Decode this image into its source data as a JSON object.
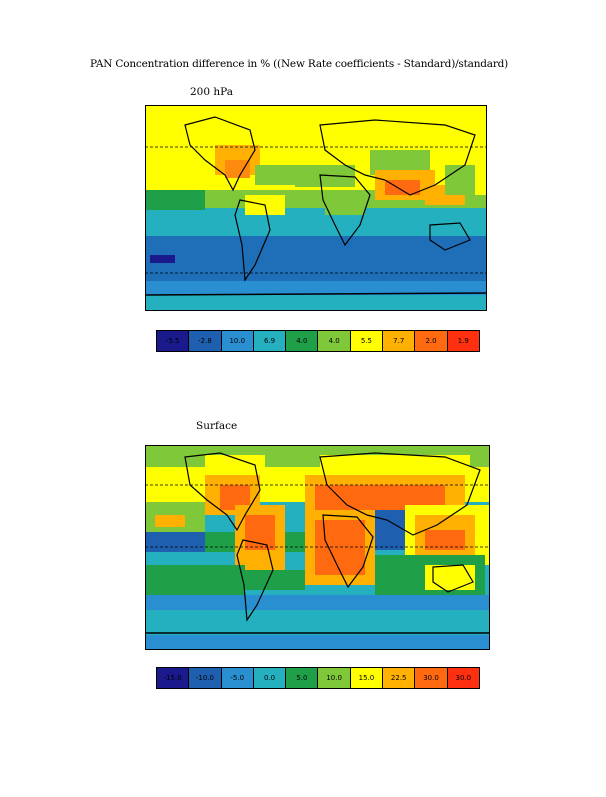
{
  "title": "PAN Concentration difference in % ((New Rate coefficients - Standard)/standard)",
  "panels": [
    {
      "label": "200 hPa",
      "legend": [
        "-5.5",
        "-2.8",
        "10.0",
        "6.9",
        "4.0",
        "4.0",
        "5.5",
        "7.7",
        "2.0",
        "1.9"
      ]
    },
    {
      "label": "Surface",
      "legend": [
        "-15.0",
        "-10.0",
        "-5.0",
        "0.0",
        "5.0",
        "10.0",
        "15.0",
        "22.5",
        "30.0",
        "30.0"
      ]
    }
  ],
  "colors": {
    "scale": [
      "#1a1a8c",
      "#1e5fb0",
      "#2a8fd0",
      "#25b0c0",
      "#1fa048",
      "#7ec83a",
      "#ffff00",
      "#ffb000",
      "#ff6a10",
      "#ff3010"
    ],
    "ocean_base": "#2a8fd0",
    "land_outline": "#000000"
  }
}
